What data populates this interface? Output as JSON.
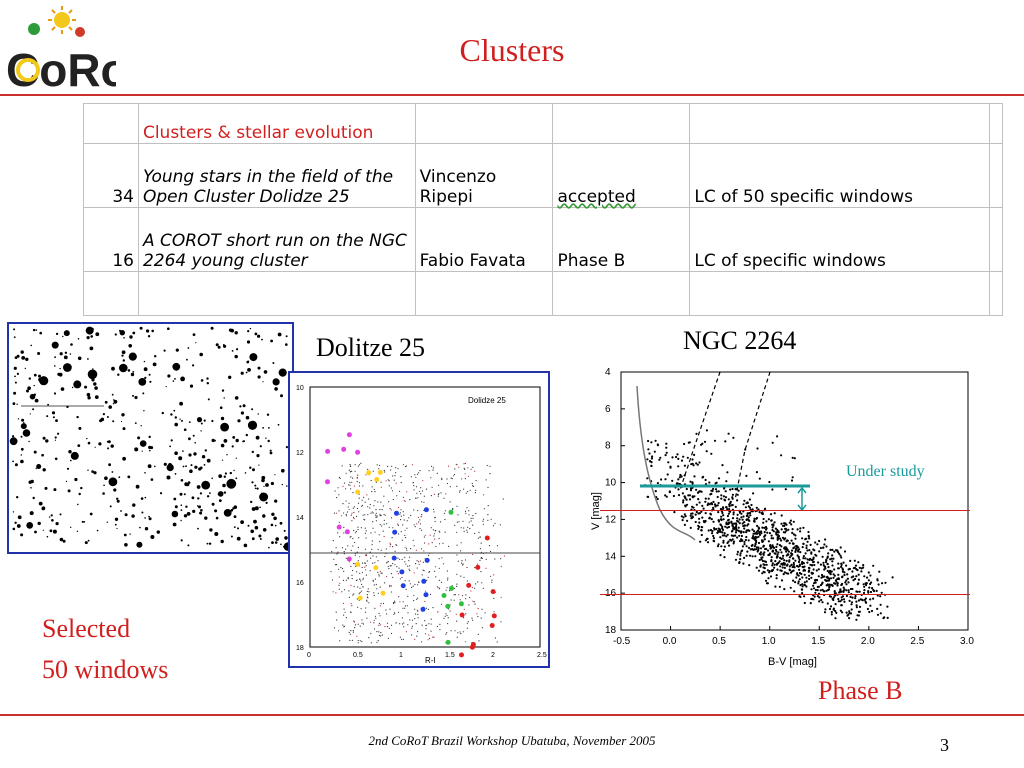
{
  "slide": {
    "title": "Clusters",
    "footer": "2nd CoRoT Brazil Workshop Ubatuba, November 2005",
    "page_number": "3"
  },
  "logo": {
    "text": "CoRoT"
  },
  "table": {
    "section_header": "Clusters & stellar evolution",
    "rows": [
      {
        "id": "34",
        "title": "Young stars in the field of the Open Cluster Dolidze 25",
        "pi": "Vincenzo Ripepi",
        "status": "accepted",
        "notes": "LC of 50 specific windows"
      },
      {
        "id": "16",
        "title": "A COROT short run on the NGC 2264 young cluster",
        "pi": "Fabio Favata",
        "status": "Phase B",
        "notes": "LC of specific windows"
      }
    ]
  },
  "labels": {
    "dolidze": "Dolitze 25",
    "ngc": "NGC 2264",
    "selected": "Selected",
    "windows": "50 windows",
    "phase_b": "Phase B",
    "under_study": "Under study"
  },
  "colors": {
    "accent": "#d0201e",
    "border_blue": "#2233aa",
    "teal": "#1a9a9a"
  },
  "chart_data": [
    {
      "type": "scatter",
      "title": "Dolidze 25",
      "xlabel": "R-I",
      "ylabel": "",
      "xlim": [
        0,
        2.5
      ],
      "ylim": [
        18,
        10
      ],
      "x_ticks": [
        "0",
        "0.5",
        "1",
        "1.5",
        "2",
        "2.5"
      ],
      "y_ticks": [
        "10",
        "12",
        "14",
        "16",
        "18"
      ]
    },
    {
      "type": "scatter",
      "xlabel": "B-V [mag]",
      "ylabel": "V [mag]",
      "xlim": [
        -0.5,
        3.0
      ],
      "ylim": [
        18,
        4
      ],
      "x_ticks": [
        "-0.5",
        "0.0",
        "0.5",
        "1.0",
        "1.5",
        "2.0",
        "2.5",
        "3.0"
      ],
      "y_ticks": [
        "4",
        "6",
        "8",
        "10",
        "12",
        "14",
        "16",
        "18"
      ],
      "horizontal_lines": [
        11.5,
        16.0
      ],
      "annotation": "Under study"
    }
  ]
}
